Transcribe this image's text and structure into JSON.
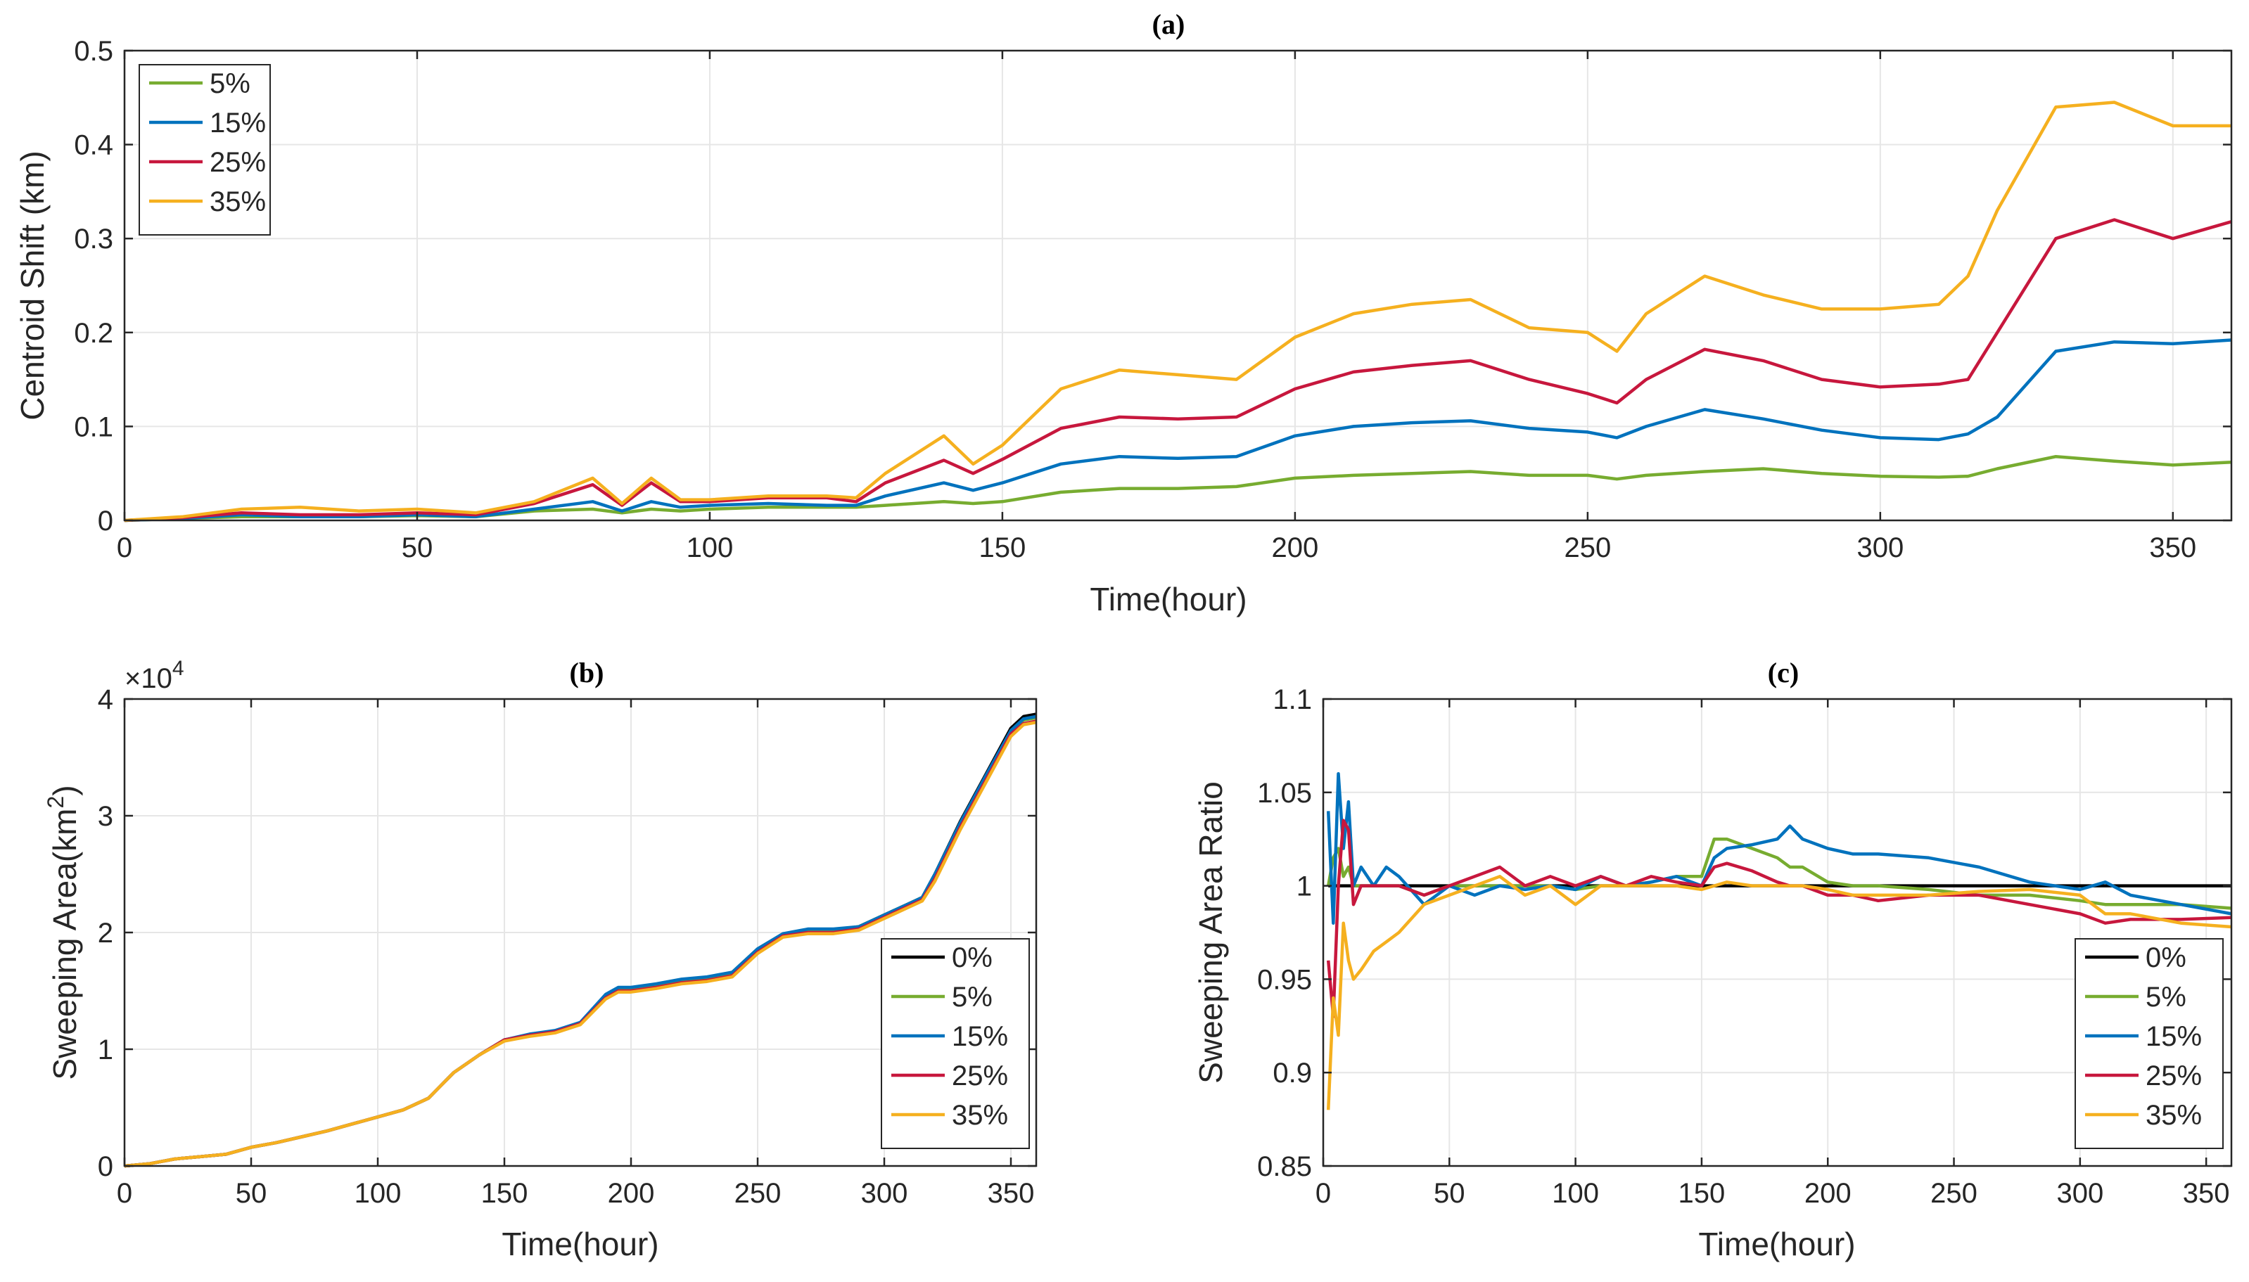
{
  "chart_data": [
    {
      "id": "a",
      "type": "line",
      "title": "(a)",
      "xlabel": "Time(hour)",
      "ylabel": "Centroid Shift (km)",
      "xlim": [
        0,
        360
      ],
      "ylim": [
        0,
        0.5
      ],
      "xticks": [
        0,
        50,
        100,
        150,
        200,
        250,
        300,
        350
      ],
      "yticks": [
        0,
        0.1,
        0.2,
        0.3,
        0.4,
        0.5
      ],
      "grid": true,
      "legend_position": "top-left",
      "x": [
        0,
        10,
        20,
        30,
        40,
        50,
        60,
        70,
        80,
        85,
        90,
        95,
        100,
        110,
        120,
        125,
        130,
        140,
        145,
        150,
        160,
        170,
        180,
        190,
        200,
        210,
        220,
        230,
        240,
        250,
        255,
        260,
        270,
        280,
        290,
        300,
        310,
        315,
        320,
        330,
        340,
        350,
        360
      ],
      "series": [
        {
          "name": "5%",
          "color": "#77ac30",
          "values": [
            0,
            0.002,
            0.004,
            0.004,
            0.004,
            0.005,
            0.004,
            0.01,
            0.012,
            0.008,
            0.012,
            0.01,
            0.012,
            0.014,
            0.014,
            0.014,
            0.016,
            0.02,
            0.018,
            0.02,
            0.03,
            0.034,
            0.034,
            0.036,
            0.045,
            0.048,
            0.05,
            0.052,
            0.048,
            0.048,
            0.044,
            0.048,
            0.052,
            0.055,
            0.05,
            0.047,
            0.046,
            0.047,
            0.055,
            0.068,
            0.063,
            0.059,
            0.062
          ]
        },
        {
          "name": "15%",
          "color": "#0072bd",
          "values": [
            0,
            0.002,
            0.006,
            0.004,
            0.004,
            0.006,
            0.004,
            0.012,
            0.02,
            0.01,
            0.02,
            0.014,
            0.016,
            0.018,
            0.016,
            0.016,
            0.026,
            0.04,
            0.032,
            0.04,
            0.06,
            0.068,
            0.066,
            0.068,
            0.09,
            0.1,
            0.104,
            0.106,
            0.098,
            0.094,
            0.088,
            0.1,
            0.118,
            0.108,
            0.096,
            0.088,
            0.086,
            0.092,
            0.11,
            0.18,
            0.19,
            0.188,
            0.192
          ]
        },
        {
          "name": "25%",
          "color": "#c7173d",
          "values": [
            0,
            0.003,
            0.008,
            0.006,
            0.006,
            0.008,
            0.006,
            0.018,
            0.038,
            0.016,
            0.04,
            0.02,
            0.02,
            0.024,
            0.024,
            0.02,
            0.04,
            0.064,
            0.05,
            0.065,
            0.098,
            0.11,
            0.108,
            0.11,
            0.14,
            0.158,
            0.165,
            0.17,
            0.15,
            0.135,
            0.125,
            0.15,
            0.182,
            0.17,
            0.15,
            0.142,
            0.145,
            0.15,
            0.2,
            0.3,
            0.32,
            0.3,
            0.318
          ]
        },
        {
          "name": "35%",
          "color": "#f5b01f",
          "values": [
            0,
            0.004,
            0.012,
            0.014,
            0.01,
            0.012,
            0.008,
            0.02,
            0.045,
            0.018,
            0.045,
            0.022,
            0.022,
            0.026,
            0.026,
            0.024,
            0.05,
            0.09,
            0.06,
            0.08,
            0.14,
            0.16,
            0.155,
            0.15,
            0.195,
            0.22,
            0.23,
            0.235,
            0.205,
            0.2,
            0.18,
            0.22,
            0.26,
            0.24,
            0.225,
            0.225,
            0.23,
            0.26,
            0.33,
            0.44,
            0.445,
            0.42,
            0.42
          ]
        }
      ]
    },
    {
      "id": "b",
      "type": "line",
      "title": "(b)",
      "xlabel": "Time(hour)",
      "ylabel": "Sweeping Area(km",
      "ylabel_sup": "2",
      "ylabel_tail": ")",
      "exponent": "×10",
      "exponent_sup": "4",
      "xlim": [
        0,
        360
      ],
      "ylim": [
        0,
        4
      ],
      "xticks": [
        0,
        50,
        100,
        150,
        200,
        250,
        300,
        350
      ],
      "yticks": [
        0,
        1,
        2,
        3,
        4
      ],
      "grid": true,
      "legend_position": "bottom-right",
      "x": [
        0,
        10,
        20,
        30,
        40,
        50,
        60,
        70,
        80,
        90,
        100,
        110,
        120,
        130,
        140,
        150,
        160,
        170,
        180,
        190,
        195,
        200,
        210,
        220,
        230,
        240,
        250,
        260,
        270,
        280,
        290,
        300,
        310,
        315,
        320,
        330,
        340,
        350,
        355,
        360
      ],
      "series": [
        {
          "name": "0%",
          "color": "#000000",
          "values": [
            0,
            0.02,
            0.06,
            0.08,
            0.1,
            0.16,
            0.2,
            0.25,
            0.3,
            0.36,
            0.42,
            0.48,
            0.58,
            0.8,
            0.95,
            1.08,
            1.12,
            1.15,
            1.22,
            1.45,
            1.52,
            1.52,
            1.55,
            1.58,
            1.6,
            1.65,
            1.85,
            1.98,
            2.02,
            2.02,
            2.05,
            2.15,
            2.25,
            2.3,
            2.5,
            2.95,
            3.35,
            3.75,
            3.85,
            3.87
          ]
        },
        {
          "name": "5%",
          "color": "#77ac30",
          "values": [
            0,
            0.02,
            0.06,
            0.08,
            0.1,
            0.16,
            0.2,
            0.25,
            0.3,
            0.36,
            0.42,
            0.48,
            0.58,
            0.8,
            0.95,
            1.08,
            1.12,
            1.15,
            1.22,
            1.45,
            1.52,
            1.52,
            1.55,
            1.58,
            1.6,
            1.65,
            1.85,
            1.98,
            2.02,
            2.02,
            2.05,
            2.15,
            2.25,
            2.3,
            2.48,
            2.92,
            3.32,
            3.72,
            3.82,
            3.84
          ]
        },
        {
          "name": "15%",
          "color": "#0072bd",
          "values": [
            0,
            0.02,
            0.06,
            0.08,
            0.1,
            0.16,
            0.2,
            0.25,
            0.3,
            0.36,
            0.42,
            0.48,
            0.58,
            0.8,
            0.95,
            1.08,
            1.13,
            1.16,
            1.23,
            1.47,
            1.53,
            1.53,
            1.56,
            1.6,
            1.62,
            1.66,
            1.86,
            1.99,
            2.03,
            2.03,
            2.05,
            2.15,
            2.25,
            2.3,
            2.5,
            2.94,
            3.34,
            3.73,
            3.83,
            3.85
          ]
        },
        {
          "name": "25%",
          "color": "#c7173d",
          "values": [
            0,
            0.02,
            0.06,
            0.08,
            0.1,
            0.16,
            0.2,
            0.25,
            0.3,
            0.36,
            0.42,
            0.48,
            0.58,
            0.8,
            0.95,
            1.08,
            1.12,
            1.15,
            1.22,
            1.44,
            1.5,
            1.5,
            1.53,
            1.57,
            1.59,
            1.63,
            1.83,
            1.97,
            2.0,
            2.0,
            2.03,
            2.13,
            2.23,
            2.28,
            2.46,
            2.9,
            3.3,
            3.7,
            3.79,
            3.81
          ]
        },
        {
          "name": "35%",
          "color": "#f5b01f",
          "values": [
            0,
            0.02,
            0.06,
            0.08,
            0.1,
            0.16,
            0.2,
            0.25,
            0.3,
            0.36,
            0.42,
            0.48,
            0.58,
            0.8,
            0.95,
            1.07,
            1.11,
            1.14,
            1.21,
            1.43,
            1.49,
            1.49,
            1.52,
            1.56,
            1.58,
            1.62,
            1.82,
            1.96,
            1.99,
            1.99,
            2.02,
            2.12,
            2.22,
            2.27,
            2.44,
            2.88,
            3.28,
            3.68,
            3.78,
            3.8
          ]
        }
      ]
    },
    {
      "id": "c",
      "type": "line",
      "title": "(c)",
      "xlabel": "Time(hour)",
      "ylabel": "Sweeping Area Ratio",
      "xlim": [
        0,
        360
      ],
      "ylim": [
        0.85,
        1.1
      ],
      "xticks": [
        0,
        50,
        100,
        150,
        200,
        250,
        300,
        350
      ],
      "yticks": [
        0.85,
        0.9,
        0.95,
        1,
        1.05,
        1.1
      ],
      "ytick_labels": [
        "0.85",
        "0.9",
        "0.95",
        "1",
        "1.05",
        "1.1"
      ],
      "grid": true,
      "legend_position": "bottom-right",
      "x": [
        2,
        4,
        6,
        8,
        10,
        12,
        15,
        20,
        25,
        30,
        40,
        50,
        60,
        70,
        80,
        90,
        100,
        110,
        120,
        130,
        140,
        150,
        155,
        160,
        170,
        180,
        185,
        190,
        200,
        210,
        220,
        240,
        260,
        280,
        300,
        310,
        320,
        340,
        360
      ],
      "series": [
        {
          "name": "0%",
          "color": "#000000",
          "values": [
            1,
            1,
            1,
            1,
            1,
            1,
            1,
            1,
            1,
            1,
            1,
            1,
            1,
            1,
            1,
            1,
            1,
            1,
            1,
            1,
            1,
            1,
            1,
            1,
            1,
            1,
            1,
            1,
            1,
            1,
            1,
            1,
            1,
            1,
            1,
            1,
            1,
            1,
            1
          ]
        },
        {
          "name": "5%",
          "color": "#77ac30",
          "values": [
            1.0,
            1.015,
            1.02,
            1.005,
            1.01,
            1.0,
            1.0,
            1.0,
            1.0,
            1.0,
            0.995,
            1.0,
            1.0,
            1.0,
            1.0,
            1.0,
            0.998,
            1.0,
            1.0,
            1.002,
            1.005,
            1.005,
            1.025,
            1.025,
            1.02,
            1.015,
            1.01,
            1.01,
            1.002,
            1.0,
            1.0,
            0.998,
            0.995,
            0.995,
            0.992,
            0.99,
            0.99,
            0.99,
            0.988
          ]
        },
        {
          "name": "15%",
          "color": "#0072bd",
          "values": [
            1.04,
            0.98,
            1.06,
            1.02,
            1.045,
            1.0,
            1.01,
            1.0,
            1.01,
            1.005,
            0.99,
            1.0,
            0.995,
            1.0,
            0.998,
            1.0,
            0.998,
            1.005,
            1.0,
            1.002,
            1.005,
            1.0,
            1.015,
            1.02,
            1.022,
            1.025,
            1.032,
            1.025,
            1.02,
            1.017,
            1.017,
            1.015,
            1.01,
            1.002,
            0.998,
            1.002,
            0.995,
            0.99,
            0.985
          ]
        },
        {
          "name": "25%",
          "color": "#c7173d",
          "values": [
            0.96,
            0.93,
            1.0,
            1.035,
            1.03,
            0.99,
            1.0,
            1.0,
            1.0,
            1.0,
            0.995,
            1.0,
            1.005,
            1.01,
            1.0,
            1.005,
            1.0,
            1.005,
            1.0,
            1.005,
            1.002,
            1.0,
            1.01,
            1.012,
            1.008,
            1.002,
            1.0,
            1.0,
            0.995,
            0.995,
            0.992,
            0.995,
            0.995,
            0.99,
            0.985,
            0.98,
            0.982,
            0.982,
            0.983
          ]
        },
        {
          "name": "35%",
          "color": "#f5b01f",
          "values": [
            0.88,
            0.94,
            0.92,
            0.98,
            0.96,
            0.95,
            0.955,
            0.965,
            0.97,
            0.975,
            0.99,
            0.995,
            1.0,
            1.005,
            0.995,
            1.0,
            0.99,
            1.0,
            1.0,
            1.0,
            1.0,
            0.998,
            1.0,
            1.002,
            1.0,
            1.0,
            1.0,
            1.0,
            0.998,
            0.995,
            0.995,
            0.995,
            0.997,
            0.998,
            0.995,
            0.985,
            0.985,
            0.98,
            0.978
          ]
        }
      ]
    }
  ]
}
